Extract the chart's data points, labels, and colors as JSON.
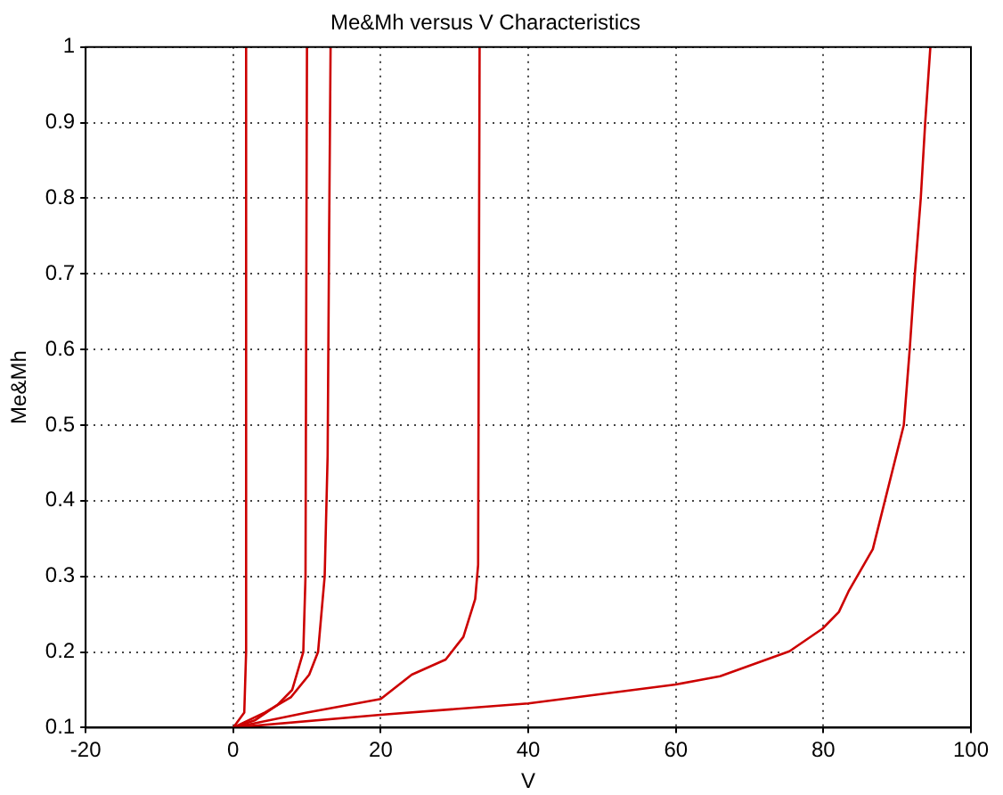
{
  "chart_data": {
    "type": "line",
    "title": "Me&Mh versus V Characteristics",
    "xlabel": "V",
    "ylabel": "Me&Mh",
    "xlim": [
      -20,
      100
    ],
    "xticks": [
      -20,
      0,
      20,
      40,
      60,
      80,
      100
    ],
    "ylim": [
      0.1,
      1
    ],
    "yticks": [
      0.1,
      0.2,
      0.3,
      0.4,
      0.5,
      0.6,
      0.7,
      0.8,
      0.9,
      1
    ],
    "grid": true,
    "legend": false,
    "marker": "none",
    "line_style": "solid",
    "series": [
      {
        "color": "#cc0000",
        "x": [
          0,
          1.5,
          1.75,
          1.75
        ],
        "values": [
          0.1,
          0.12,
          0.2,
          1
        ]
      },
      {
        "color": "#cc0000",
        "x": [
          0,
          3,
          6,
          8,
          9.5,
          9.8,
          10
        ],
        "values": [
          0.1,
          0.11,
          0.13,
          0.15,
          0.2,
          0.3,
          1
        ]
      },
      {
        "color": "#cc0000",
        "x": [
          0,
          4.3,
          7.8,
          10.3,
          11.5,
          12.4,
          12.8,
          13,
          13.2
        ],
        "values": [
          0.1,
          0.12,
          0.14,
          0.17,
          0.2,
          0.3,
          0.46,
          0.75,
          1
        ]
      },
      {
        "color": "#cc0000",
        "x": [
          0,
          10,
          20,
          24.2,
          28.8,
          31.2,
          32.8,
          33.2,
          33.4
        ],
        "values": [
          0.1,
          0.12,
          0.138,
          0.17,
          0.19,
          0.22,
          0.27,
          0.315,
          1
        ]
      },
      {
        "color": "#cc0000",
        "x": [
          0,
          20,
          40,
          60,
          66,
          75.4,
          79.9,
          82.1,
          83.4,
          86.7,
          90.9,
          91.7,
          92.4,
          93.2,
          93.8,
          94.5
        ],
        "values": [
          0.1,
          0.117,
          0.132,
          0.157,
          0.168,
          0.201,
          0.231,
          0.253,
          0.28,
          0.336,
          0.5,
          0.6,
          0.7,
          0.8,
          0.9,
          1
        ]
      }
    ]
  }
}
